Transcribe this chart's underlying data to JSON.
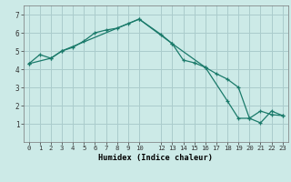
{
  "title": "",
  "xlabel": "Humidex (Indice chaleur)",
  "background_color": "#cceae7",
  "grid_color": "#aacccc",
  "line_color": "#1a7a6a",
  "xlim": [
    -0.5,
    23.5
  ],
  "ylim": [
    0,
    7.5
  ],
  "yticks": [
    1,
    2,
    3,
    4,
    5,
    6,
    7
  ],
  "line1_x": [
    0,
    1,
    2,
    3,
    4,
    5,
    6,
    7,
    8,
    9,
    10,
    12,
    13,
    14,
    15,
    16,
    17,
    18,
    19,
    20,
    21,
    22,
    23
  ],
  "line1_y": [
    4.3,
    4.8,
    4.6,
    5.0,
    5.2,
    5.55,
    6.0,
    6.15,
    6.25,
    6.5,
    6.75,
    5.9,
    5.4,
    4.5,
    4.35,
    4.1,
    3.75,
    3.45,
    3.0,
    1.3,
    1.05,
    1.7,
    1.45
  ],
  "line2_x": [
    0,
    2,
    3,
    10,
    13,
    16,
    18,
    19,
    20,
    21,
    22,
    23
  ],
  "line2_y": [
    4.3,
    4.6,
    5.0,
    6.75,
    5.4,
    4.1,
    2.25,
    1.3,
    1.3,
    1.7,
    1.5,
    1.45
  ]
}
